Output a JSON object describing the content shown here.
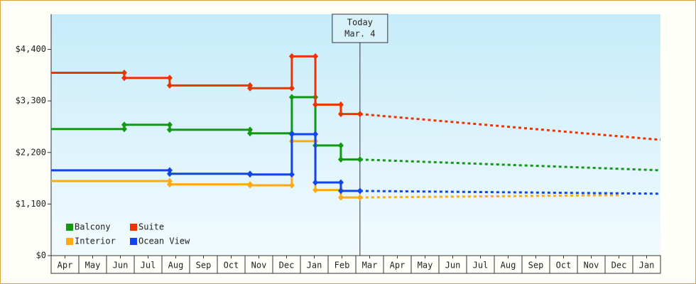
{
  "chart_data": {
    "type": "line",
    "xlim": [
      0,
      22
    ],
    "xticks": [
      {
        "value": 0.5,
        "label": "Apr"
      },
      {
        "value": 1.5,
        "label": "May"
      },
      {
        "value": 2.5,
        "label": "Jun"
      },
      {
        "value": 3.5,
        "label": "Jul"
      },
      {
        "value": 4.5,
        "label": "Aug"
      },
      {
        "value": 5.5,
        "label": "Sep"
      },
      {
        "value": 6.5,
        "label": "Oct"
      },
      {
        "value": 7.5,
        "label": "Nov"
      },
      {
        "value": 8.5,
        "label": "Dec"
      },
      {
        "value": 9.5,
        "label": "Jan"
      },
      {
        "value": 10.5,
        "label": "Feb"
      },
      {
        "value": 11.5,
        "label": "Mar"
      },
      {
        "value": 12.5,
        "label": "Apr"
      },
      {
        "value": 13.5,
        "label": "May"
      },
      {
        "value": 14.5,
        "label": "Jun"
      },
      {
        "value": 15.5,
        "label": "Jul"
      },
      {
        "value": 16.5,
        "label": "Aug"
      },
      {
        "value": 17.5,
        "label": "Sep"
      },
      {
        "value": 18.5,
        "label": "Oct"
      },
      {
        "value": 19.5,
        "label": "Nov"
      },
      {
        "value": 20.5,
        "label": "Dec"
      },
      {
        "value": 21.5,
        "label": "Jan"
      }
    ],
    "ylim": [
      0,
      5150
    ],
    "yticks": [
      {
        "value": 0,
        "label": "$0"
      },
      {
        "value": 1100,
        "label": "$1,100"
      },
      {
        "value": 2200,
        "label": "$2,200"
      },
      {
        "value": 3300,
        "label": "$3,300"
      },
      {
        "value": 4400,
        "label": "$4,400"
      }
    ],
    "today": {
      "x": 11.15,
      "label": [
        "Today",
        "Mar. 4"
      ]
    },
    "series": [
      {
        "name": "Balcony",
        "color": "#119911",
        "x": [
          0,
          2.64,
          2.64,
          4.28,
          4.28,
          7.18,
          7.18,
          8.69,
          8.69,
          9.54,
          9.54,
          10.46,
          10.46,
          11.15
        ],
        "values": [
          2700,
          2700,
          2790,
          2790,
          2685,
          2685,
          2610,
          2610,
          3380,
          3380,
          2350,
          2350,
          2050,
          2050
        ],
        "projection": {
          "x": [
            11.15,
            22
          ],
          "values": [
            2050,
            1820
          ]
        }
      },
      {
        "name": "Suite",
        "color": "#ee3300",
        "x": [
          0,
          2.64,
          2.64,
          4.28,
          4.28,
          7.18,
          7.18,
          8.69,
          8.69,
          9.54,
          9.54,
          10.46,
          10.46,
          11.15
        ],
        "values": [
          3900,
          3900,
          3790,
          3790,
          3630,
          3630,
          3570,
          3570,
          4250,
          4250,
          3220,
          3220,
          3020,
          3020
        ],
        "projection": {
          "x": [
            11.15,
            22
          ],
          "values": [
            3020,
            2470
          ]
        }
      },
      {
        "name": "Interior",
        "color": "#ffaa11",
        "x": [
          0,
          4.28,
          4.28,
          7.18,
          7.18,
          8.69,
          8.69,
          9.54,
          9.54,
          10.46,
          10.46,
          11.15
        ],
        "values": [
          1590,
          1590,
          1520,
          1520,
          1500,
          1500,
          2440,
          2440,
          1400,
          1400,
          1240,
          1240
        ],
        "projection": {
          "x": [
            11.15,
            20.59
          ],
          "values": [
            1240,
            1290
          ]
        }
      },
      {
        "name": "Ocean View",
        "color": "#1144ee",
        "x": [
          0,
          4.28,
          4.28,
          7.18,
          7.18,
          8.69,
          8.69,
          9.54,
          9.54,
          10.46,
          10.46,
          11.15
        ],
        "values": [
          1820,
          1820,
          1745,
          1745,
          1730,
          1730,
          2590,
          2590,
          1560,
          1560,
          1380,
          1380
        ],
        "projection": {
          "x": [
            11.15,
            22
          ],
          "values": [
            1380,
            1320
          ]
        }
      }
    ]
  }
}
